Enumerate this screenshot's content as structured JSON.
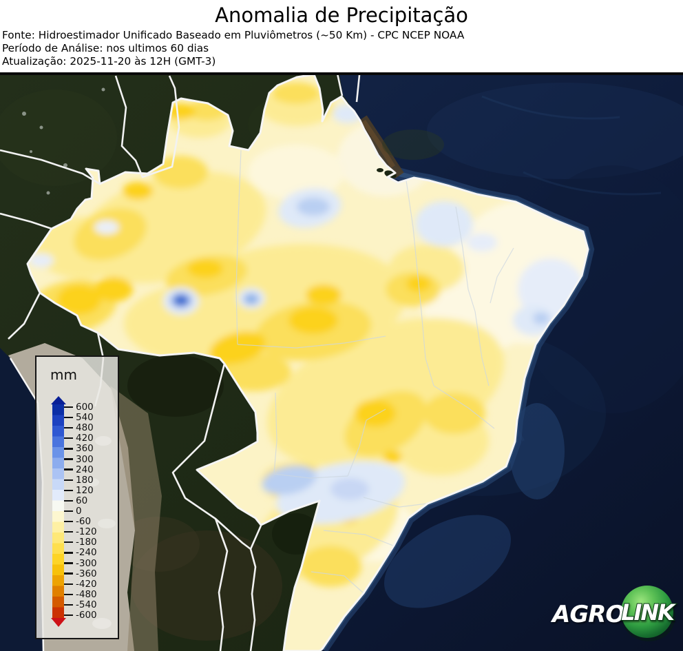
{
  "header": {
    "title": "Anomalia de Precipitação",
    "source_line": "Fonte: Hidroestimador Unificado Baseado em Pluviômetros (~50 Km) - CPC NCEP NOAA",
    "period_line": "Período de Análise: nos ultimos 60 dias",
    "update_line": "Atualização: 2025-11-20 às 12H (GMT-3)"
  },
  "map": {
    "type": "precipitation-anomaly-raster-over-satellite-basemap",
    "region": "Brazil",
    "legend": {
      "unit_label": "mm",
      "tick_labels": [
        "600",
        "540",
        "480",
        "420",
        "360",
        "300",
        "240",
        "180",
        "120",
        "60",
        "0",
        "-60",
        "-120",
        "-180",
        "-240",
        "-300",
        "-360",
        "-420",
        "-480",
        "-540",
        "-600"
      ],
      "band_colors_top_to_bottom": [
        "#0b2ea6",
        "#1c41c0",
        "#2f58d2",
        "#4a74de",
        "#6b93e8",
        "#8cacee",
        "#abc3f4",
        "#c8d9f8",
        "#e2ebfb",
        "#f7f9f2",
        "#fdf7d0",
        "#fef0a4",
        "#fee878",
        "#fedf4e",
        "#fdd426",
        "#f7c10b",
        "#eda303",
        "#e08000",
        "#d45a00",
        "#cb3203"
      ],
      "arrow_top_color": "#081f96",
      "arrow_bottom_color": "#cd1117",
      "value_min": -600,
      "value_max": 600,
      "value_step": 60
    },
    "palette": {
      "ocean_deep": "#0a1428",
      "ocean": "#16294d",
      "continental_shelf": "#2a4a7a",
      "forest_land": "#1d2817",
      "andes": "#b2ab9d",
      "anomaly_base": "#fcf3c6",
      "anomaly_dry_light": "#fceb94",
      "anomaly_dry_mid": "#fbdf5c",
      "anomaly_dry_strong": "#fcd21e",
      "anomaly_wet_pale": "#dfe9f8",
      "anomaly_wet_mid": "#b9cff2",
      "anomaly_wet_strong": "#3f6fd4",
      "country_border": "#f5f5f5",
      "state_border": "#cdd7e1"
    }
  },
  "logo": {
    "text_agro": "AGRO",
    "text_link": "LINK",
    "sphere_color": "#2f9c41"
  }
}
